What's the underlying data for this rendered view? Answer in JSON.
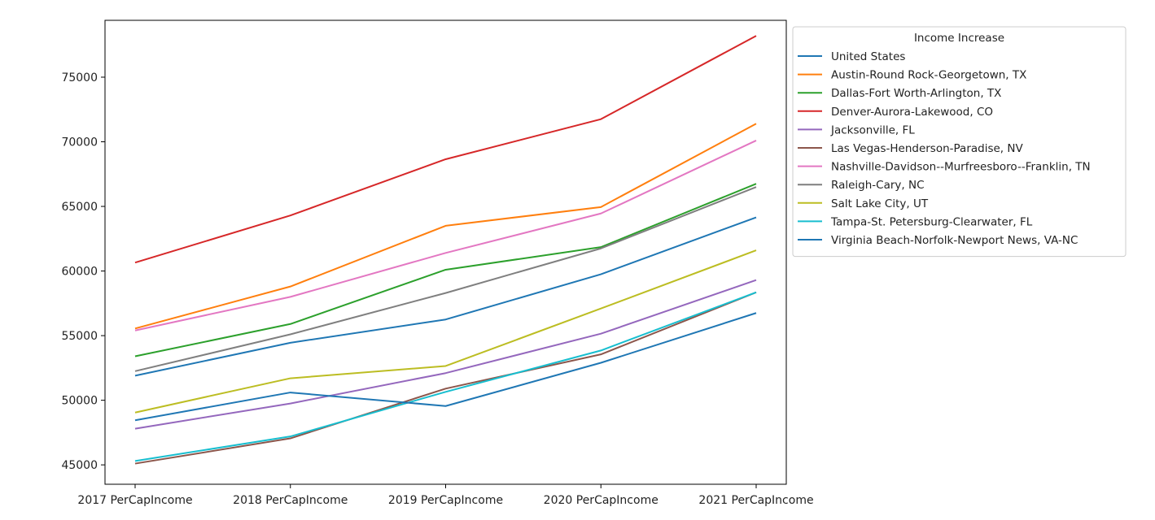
{
  "chart_data": {
    "type": "line",
    "title": "",
    "xlabel": "",
    "ylabel": "",
    "categories": [
      "2017 PerCapIncome",
      "2018 PerCapIncome",
      "2019 PerCapIncome",
      "2020 PerCapIncome",
      "2021 PerCapIncome"
    ],
    "ylim": [
      43500,
      79400
    ],
    "yticks": [
      45000,
      50000,
      55000,
      60000,
      65000,
      70000,
      75000
    ],
    "grid": false,
    "legend": {
      "title": "Income Increase",
      "placement": "outside-top-right"
    },
    "series": [
      {
        "name": "United States",
        "color": "#1f77b4",
        "values": [
          51900,
          54450,
          56250,
          59750,
          64150
        ]
      },
      {
        "name": "Austin-Round Rock-Georgetown, TX",
        "color": "#ff7f0e",
        "values": [
          55550,
          58800,
          63500,
          64950,
          71400
        ]
      },
      {
        "name": "Dallas-Fort Worth-Arlington, TX",
        "color": "#2ca02c",
        "values": [
          53400,
          55900,
          60100,
          61850,
          66750
        ]
      },
      {
        "name": "Denver-Aurora-Lakewood, CO",
        "color": "#d62728",
        "values": [
          60650,
          64300,
          68650,
          71750,
          78200
        ]
      },
      {
        "name": "Jacksonville, FL",
        "color": "#9467bd",
        "values": [
          47800,
          49750,
          52100,
          55150,
          59300
        ]
      },
      {
        "name": "Las Vegas-Henderson-Paradise, NV",
        "color": "#8c564b",
        "values": [
          45100,
          47050,
          50900,
          53550,
          58350
        ]
      },
      {
        "name": "Nashville-Davidson--Murfreesboro--Franklin, TN",
        "color": "#e377c2",
        "values": [
          55400,
          58000,
          61400,
          64450,
          70100
        ]
      },
      {
        "name": "Raleigh-Cary, NC",
        "color": "#7f7f7f",
        "values": [
          52250,
          55100,
          58300,
          61750,
          66500
        ]
      },
      {
        "name": "Salt Lake City, UT",
        "color": "#bcbd22",
        "values": [
          49050,
          51700,
          52650,
          57100,
          61600
        ]
      },
      {
        "name": "Tampa-St. Petersburg-Clearwater, FL",
        "color": "#17becf",
        "values": [
          45300,
          47200,
          50650,
          53850,
          58350
        ]
      },
      {
        "name": "Virginia Beach-Norfolk-Newport News, VA-NC",
        "color": "#1f77b4",
        "values": [
          48450,
          50600,
          49550,
          52900,
          56750
        ]
      }
    ]
  }
}
